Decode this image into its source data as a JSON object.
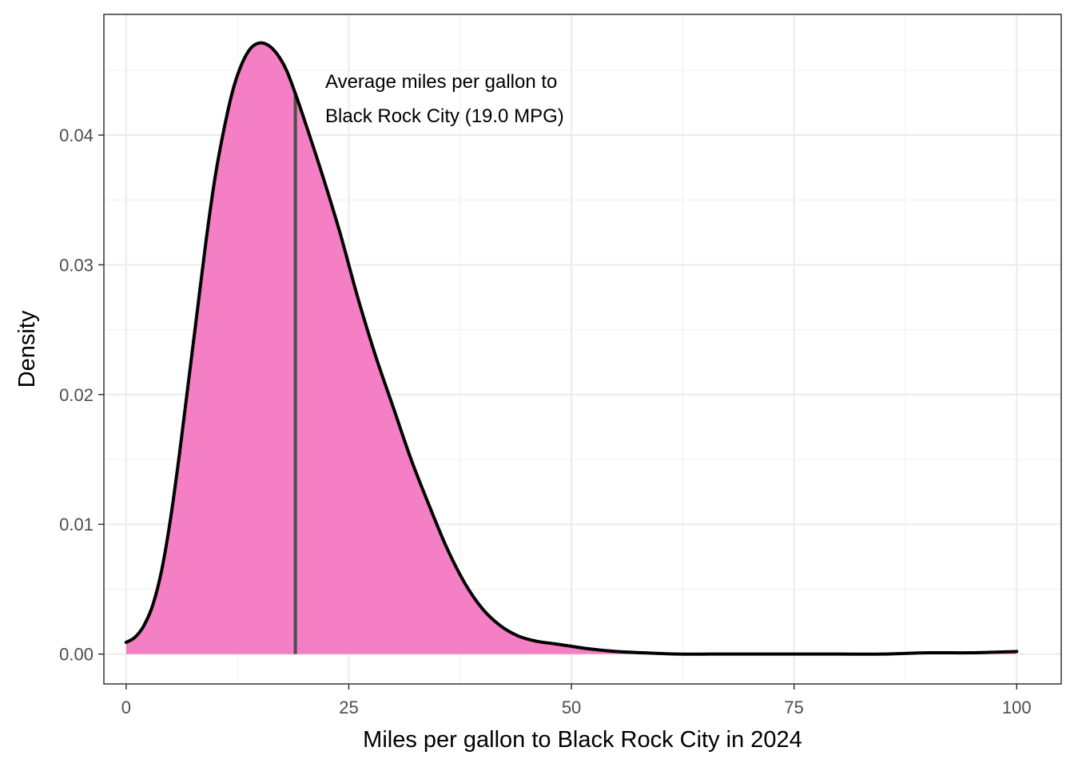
{
  "chart_data": {
    "type": "area",
    "xlabel": "Miles per gallon to Black Rock City in 2024",
    "ylabel": "Density",
    "xlim": [
      -2.5,
      105
    ],
    "ylim": [
      -0.0023,
      0.0493
    ],
    "x_ticks": [
      0,
      25,
      50,
      75,
      100
    ],
    "x_tick_labels": [
      "0",
      "25",
      "50",
      "75",
      "100"
    ],
    "y_ticks": [
      0,
      0.01,
      0.02,
      0.03,
      0.04
    ],
    "y_tick_labels": [
      "0.00",
      "0.01",
      "0.02",
      "0.03",
      "0.04"
    ],
    "grid": true,
    "legend": "none",
    "fill_color": "#f47fc4",
    "line_color": "#000000",
    "mean_line_color": "#4d4d4d",
    "mean_x": 19.0,
    "annotation": {
      "lines": [
        "Average miles per gallon to",
        "Black Rock City (19.0 MPG)"
      ]
    },
    "series": [
      {
        "x": [
          0,
          1,
          2,
          3,
          4,
          5,
          6,
          7,
          8,
          9,
          10,
          11,
          12,
          13,
          14,
          15,
          16,
          17,
          18,
          19,
          20,
          22,
          24,
          26,
          28,
          30,
          32,
          34,
          36,
          38,
          40,
          42,
          44,
          46,
          48,
          50,
          52,
          55,
          58,
          62,
          66,
          70,
          75,
          80,
          85,
          90,
          95,
          100
        ],
        "y": [
          0.0009,
          0.0013,
          0.0022,
          0.0038,
          0.0065,
          0.0105,
          0.0155,
          0.021,
          0.0265,
          0.032,
          0.0368,
          0.0405,
          0.0435,
          0.0455,
          0.0467,
          0.0471,
          0.0469,
          0.0462,
          0.045,
          0.0432,
          0.0412,
          0.037,
          0.0325,
          0.0275,
          0.023,
          0.019,
          0.015,
          0.0115,
          0.0082,
          0.0055,
          0.0035,
          0.0022,
          0.0014,
          0.001,
          0.0008,
          0.0006,
          0.0004,
          0.0002,
          0.0001,
          0.0,
          0.0,
          0.0,
          0.0,
          0.0,
          0.0,
          0.0001,
          0.0001,
          0.0002
        ]
      }
    ]
  }
}
